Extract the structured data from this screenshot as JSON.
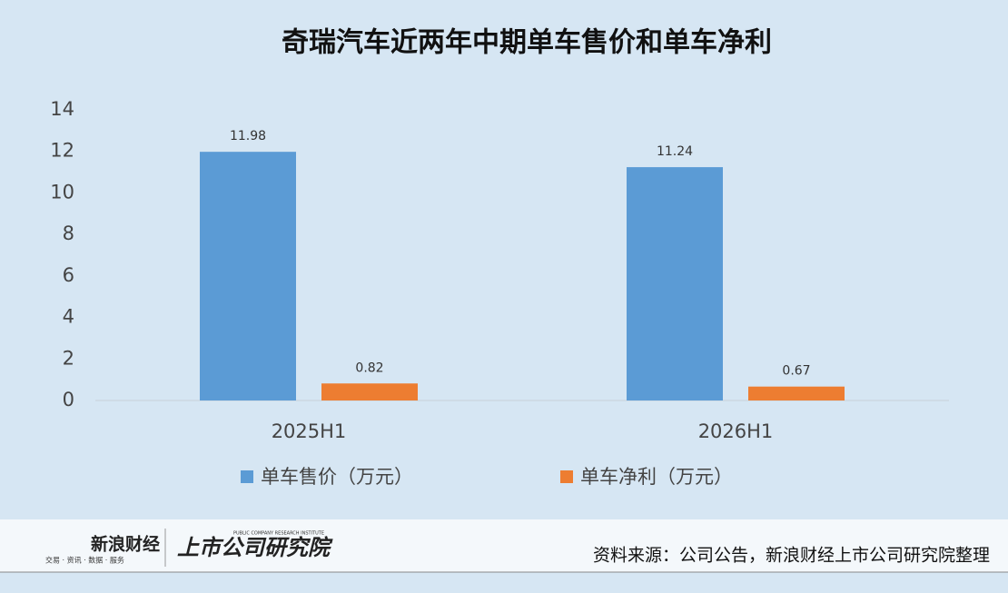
{
  "chart_data": {
    "type": "bar",
    "title": "奇瑞汽车近两年中期单车售价和单车净利",
    "categories": [
      "2025H1",
      "2026H1"
    ],
    "series": [
      {
        "name": "单车售价（万元）",
        "color": "#5b9bd5",
        "values": [
          11.98,
          11.24
        ]
      },
      {
        "name": "单车净利（万元）",
        "color": "#ed7d31",
        "values": [
          0.82,
          0.67
        ]
      }
    ],
    "ylim": [
      0,
      14
    ],
    "yticks": [
      0,
      2,
      4,
      6,
      8,
      10,
      12,
      14
    ],
    "grid": false,
    "legend": "bottom"
  },
  "footer": {
    "logo_sina": "新浪财经",
    "logo_sina_sub": "交易 · 资讯 · 数据 · 服务",
    "logo_institute": "上市公司研究院",
    "logo_institute_sub": "PUBLIC COMPANY RESEARCH INSTITUTE",
    "source": "资料来源：公司公告，新浪财经上市公司研究院整理"
  }
}
